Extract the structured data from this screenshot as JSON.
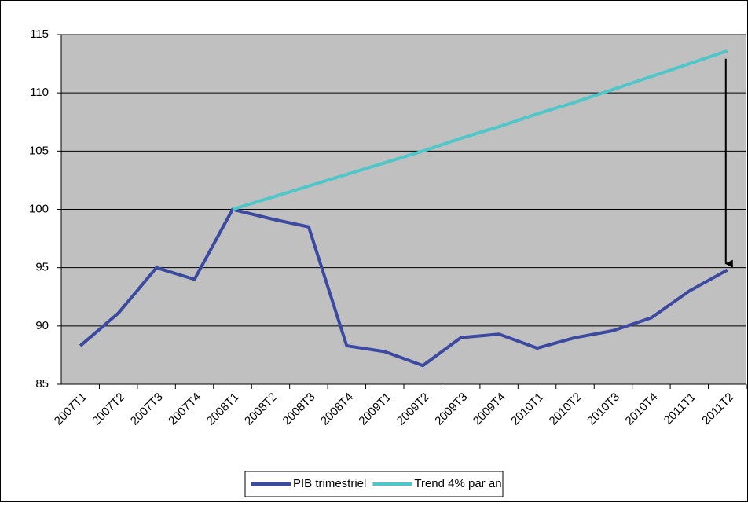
{
  "chart_data": {
    "type": "line",
    "categories": [
      "2007T1",
      "2007T2",
      "2007T3",
      "2007T4",
      "2008T1",
      "2008T2",
      "2008T3",
      "2008T4",
      "2009T1",
      "2009T2",
      "2009T3",
      "2009T4",
      "2010T1",
      "2010T2",
      "2010T3",
      "2010T4",
      "2011T1",
      "2011T2"
    ],
    "series": [
      {
        "name": "PIB trimestriel",
        "color": "#3b4aa0",
        "values": [
          88.3,
          91.1,
          95.0,
          94.0,
          100.0,
          99.2,
          98.5,
          88.3,
          87.8,
          86.6,
          89.0,
          89.3,
          88.1,
          89.0,
          89.6,
          90.7,
          93.0,
          94.8
        ]
      },
      {
        "name": "Trend 4% par an",
        "color": "#4fc6c8",
        "values": [
          null,
          null,
          null,
          null,
          100.0,
          101.0,
          102.0,
          103.0,
          104.0,
          105.0,
          106.1,
          107.1,
          108.2,
          109.2,
          110.3,
          111.4,
          112.5,
          113.6
        ]
      }
    ],
    "ylim": [
      85,
      115
    ],
    "yticks": [
      85,
      90,
      95,
      100,
      105,
      110,
      115
    ],
    "grid": true,
    "legend": "bottom"
  }
}
